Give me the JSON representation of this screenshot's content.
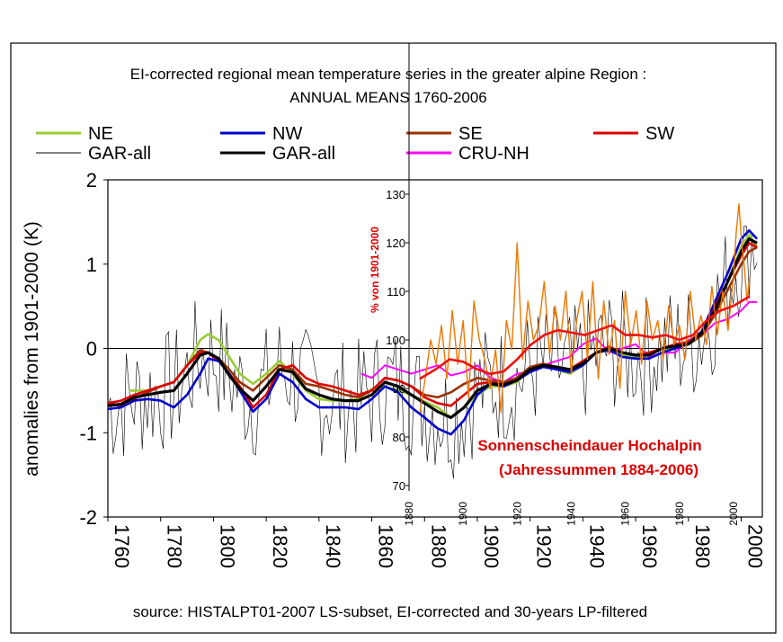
{
  "chart_data": [
    {
      "type": "line",
      "title": "EI-corrected regional mean temperature series in the greater alpine Region :",
      "subtitle": "ANNUAL MEANS 1760-2006",
      "xlabel": "",
      "ylabel": "anomalies from 1901-2000 (K)",
      "xlim": [
        1760,
        2008
      ],
      "ylim": [
        -2,
        2
      ],
      "x_ticks": [
        "1760",
        "1780",
        "1800",
        "1820",
        "1840",
        "1860",
        "1880",
        "1900",
        "1920",
        "1940",
        "1960",
        "1980",
        "2000"
      ],
      "y_ticks": [
        "-2",
        "-1",
        "0",
        "1",
        "2"
      ],
      "grid": false,
      "legend": "top, three rows above the plot",
      "legend_entries": [
        {
          "label": "NE",
          "color": "#99cc33"
        },
        {
          "label": "NW",
          "color": "#0000cc"
        },
        {
          "label": "SE",
          "color": "#993300"
        },
        {
          "label": "SW",
          "color": "#dd0000"
        },
        {
          "label": "GAR-all",
          "color": "#000000",
          "style": "thin"
        },
        {
          "label": "GAR-all",
          "color": "#000000",
          "style": "thick"
        },
        {
          "label": "CRU-NH",
          "color": "#ff00ff"
        }
      ],
      "series": [
        {
          "name": "NE",
          "color": "#99cc33",
          "x": [
            1768,
            1775,
            1780,
            1785,
            1790,
            1795,
            1798,
            1802,
            1806,
            1810,
            1815,
            1820,
            1825,
            1830,
            1835,
            1840,
            1845,
            1850,
            1855,
            1860,
            1865,
            1870,
            1875,
            1880,
            1885,
            1890,
            1895,
            1900,
            1905,
            1910,
            1915,
            1920,
            1925,
            1930,
            1935,
            1940,
            1945,
            1950,
            1955,
            1960,
            1965,
            1970,
            1975,
            1980,
            1985,
            1990,
            1995,
            2000,
            2003,
            2006
          ],
          "y": [
            -0.5,
            -0.5,
            -0.45,
            -0.4,
            -0.2,
            0.1,
            0.17,
            0.1,
            -0.1,
            -0.3,
            -0.42,
            -0.3,
            -0.15,
            -0.3,
            -0.5,
            -0.6,
            -0.62,
            -0.62,
            -0.6,
            -0.48,
            -0.45,
            -0.5,
            -0.55,
            -0.63,
            -0.7,
            -0.82,
            -0.7,
            -0.55,
            -0.45,
            -0.45,
            -0.4,
            -0.25,
            -0.2,
            -0.25,
            -0.3,
            -0.2,
            -0.05,
            -0.02,
            -0.08,
            -0.1,
            -0.12,
            -0.05,
            0.05,
            0.08,
            0.2,
            0.5,
            0.8,
            1.2,
            1.35,
            1.2
          ]
        },
        {
          "name": "NW",
          "color": "#0000cc",
          "x": [
            1760,
            1765,
            1770,
            1775,
            1780,
            1785,
            1790,
            1795,
            1798,
            1802,
            1806,
            1810,
            1815,
            1820,
            1825,
            1830,
            1835,
            1840,
            1845,
            1850,
            1855,
            1860,
            1865,
            1870,
            1875,
            1880,
            1885,
            1890,
            1895,
            1900,
            1905,
            1910,
            1915,
            1920,
            1925,
            1930,
            1935,
            1940,
            1945,
            1950,
            1955,
            1960,
            1965,
            1970,
            1975,
            1980,
            1985,
            1990,
            1995,
            2000,
            2003,
            2006
          ],
          "y": [
            -0.72,
            -0.7,
            -0.62,
            -0.6,
            -0.62,
            -0.7,
            -0.55,
            -0.3,
            -0.12,
            -0.15,
            -0.3,
            -0.5,
            -0.75,
            -0.6,
            -0.3,
            -0.4,
            -0.6,
            -0.7,
            -0.7,
            -0.7,
            -0.72,
            -0.6,
            -0.45,
            -0.52,
            -0.7,
            -0.82,
            -0.95,
            -1.02,
            -0.85,
            -0.55,
            -0.42,
            -0.45,
            -0.38,
            -0.28,
            -0.22,
            -0.25,
            -0.28,
            -0.2,
            -0.05,
            -0.02,
            -0.1,
            -0.12,
            -0.12,
            -0.05,
            0,
            0.05,
            0.2,
            0.55,
            0.9,
            1.3,
            1.4,
            1.3
          ]
        },
        {
          "name": "SE",
          "color": "#993300",
          "x": [
            1760,
            1765,
            1770,
            1775,
            1780,
            1785,
            1790,
            1795,
            1798,
            1802,
            1806,
            1810,
            1815,
            1820,
            1825,
            1830,
            1835,
            1840,
            1845,
            1850,
            1855,
            1860,
            1865,
            1870,
            1875,
            1880,
            1885,
            1890,
            1895,
            1900,
            1905,
            1910,
            1915,
            1920,
            1925,
            1930,
            1935,
            1940,
            1945,
            1950,
            1955,
            1960,
            1965,
            1970,
            1975,
            1980,
            1985,
            1990,
            1995,
            2000,
            2003,
            2006
          ],
          "y": [
            -0.65,
            -0.68,
            -0.6,
            -0.52,
            -0.45,
            -0.4,
            -0.2,
            -0.02,
            -0.05,
            -0.12,
            -0.25,
            -0.4,
            -0.5,
            -0.35,
            -0.2,
            -0.25,
            -0.42,
            -0.45,
            -0.5,
            -0.55,
            -0.58,
            -0.5,
            -0.35,
            -0.38,
            -0.45,
            -0.55,
            -0.58,
            -0.52,
            -0.42,
            -0.35,
            -0.38,
            -0.4,
            -0.35,
            -0.22,
            -0.18,
            -0.22,
            -0.25,
            -0.15,
            -0.05,
            0,
            -0.05,
            -0.08,
            -0.05,
            0,
            0.03,
            0.05,
            0.15,
            0.4,
            0.7,
            1.0,
            1.15,
            1.2
          ]
        },
        {
          "name": "SW",
          "color": "#dd0000",
          "x": [
            1760,
            1765,
            1770,
            1775,
            1780,
            1785,
            1790,
            1795,
            1798,
            1802,
            1806,
            1810,
            1815,
            1820,
            1825,
            1830,
            1835,
            1840,
            1845,
            1850,
            1855,
            1860,
            1865,
            1870,
            1875,
            1880,
            1885,
            1890,
            1895,
            1900,
            1905,
            1910,
            1915,
            1920,
            1925,
            1930,
            1935,
            1940,
            1945,
            1950,
            1955,
            1960,
            1965,
            1970,
            1975,
            1980,
            1985,
            1990,
            1995,
            2000,
            2003,
            2006
          ],
          "y": [
            -0.65,
            -0.62,
            -0.55,
            -0.5,
            -0.45,
            -0.4,
            -0.2,
            -0.05,
            -0.05,
            -0.15,
            -0.3,
            -0.45,
            -0.7,
            -0.55,
            -0.25,
            -0.2,
            -0.35,
            -0.42,
            -0.45,
            -0.5,
            -0.55,
            -0.5,
            -0.35,
            -0.38,
            -0.45,
            -0.58,
            -0.65,
            -0.68,
            -0.55,
            -0.42,
            -0.4,
            -0.43,
            -0.38,
            -0.25,
            -0.2,
            -0.22,
            -0.25,
            -0.15,
            -0.05,
            0.02,
            -0.05,
            -0.08,
            -0.05,
            0,
            0.05,
            0.08,
            0.2,
            0.5,
            0.8,
            1.1,
            1.25,
            1.2
          ]
        },
        {
          "name": "GAR-all",
          "color": "#000000",
          "style": "thick",
          "x": [
            1760,
            1765,
            1770,
            1775,
            1780,
            1785,
            1790,
            1795,
            1798,
            1802,
            1806,
            1810,
            1815,
            1820,
            1825,
            1830,
            1835,
            1840,
            1845,
            1850,
            1855,
            1860,
            1865,
            1870,
            1875,
            1880,
            1885,
            1890,
            1895,
            1900,
            1905,
            1910,
            1915,
            1920,
            1925,
            1930,
            1935,
            1940,
            1945,
            1950,
            1955,
            1960,
            1965,
            1970,
            1975,
            1980,
            1985,
            1990,
            1995,
            2000,
            2003,
            2006
          ],
          "y": [
            -0.68,
            -0.66,
            -0.58,
            -0.55,
            -0.52,
            -0.5,
            -0.3,
            -0.08,
            -0.05,
            -0.12,
            -0.32,
            -0.48,
            -0.62,
            -0.45,
            -0.25,
            -0.28,
            -0.48,
            -0.55,
            -0.6,
            -0.62,
            -0.62,
            -0.55,
            -0.4,
            -0.45,
            -0.55,
            -0.65,
            -0.75,
            -0.82,
            -0.7,
            -0.5,
            -0.42,
            -0.43,
            -0.38,
            -0.25,
            -0.2,
            -0.22,
            -0.25,
            -0.18,
            -0.05,
            0,
            -0.05,
            -0.08,
            -0.08,
            0,
            0.03,
            0.05,
            0.18,
            0.45,
            0.8,
            1.15,
            1.3,
            1.25
          ]
        },
        {
          "name": "CRU-NH",
          "color": "#ff00ff",
          "x": [
            1856,
            1860,
            1865,
            1870,
            1875,
            1880,
            1885,
            1890,
            1895,
            1900,
            1905,
            1910,
            1915,
            1920,
            1925,
            1930,
            1935,
            1940,
            1945,
            1950,
            1955,
            1960,
            1965,
            1970,
            1975,
            1980,
            1985,
            1990,
            1995,
            2000,
            2003,
            2006
          ],
          "y": [
            -0.3,
            -0.35,
            -0.2,
            -0.25,
            -0.3,
            -0.25,
            -0.2,
            -0.32,
            -0.28,
            -0.2,
            -0.35,
            -0.4,
            -0.3,
            -0.28,
            -0.2,
            -0.15,
            -0.1,
            0.05,
            0.12,
            -0.05,
            0,
            0.05,
            -0.1,
            -0.05,
            -0.05,
            0.1,
            0.15,
            0.3,
            0.35,
            0.45,
            0.55,
            0.55
          ]
        }
      ]
    },
    {
      "type": "line",
      "title": "Sonnenscheindauer Hochalpin",
      "subtitle": "(Jahressummen 1884-2006)",
      "ylabel": "% von 1901-2000",
      "xlim": [
        1880,
        2008
      ],
      "ylim": [
        70,
        130
      ],
      "x_ticks": [
        "1880",
        "1900",
        "1920",
        "1940",
        "1960",
        "1980",
        "2000"
      ],
      "y_ticks": [
        "70",
        "80",
        "90",
        "100",
        "110",
        "120",
        "130"
      ],
      "series": [
        {
          "name": "",
          "color": "#ee7700",
          "x": [
            1884,
            1886,
            1888,
            1890,
            1892,
            1894,
            1896,
            1898,
            1900,
            1902,
            1904,
            1906,
            1908,
            1910,
            1912,
            1914,
            1916,
            1918,
            1920,
            1922,
            1924,
            1926,
            1928,
            1930,
            1932,
            1934,
            1936,
            1938,
            1940,
            1942,
            1944,
            1946,
            1948,
            1950,
            1952,
            1954,
            1956,
            1958,
            1960,
            1962,
            1964,
            1966,
            1968,
            1970,
            1972,
            1974,
            1976,
            1978,
            1980,
            1982,
            1984,
            1986,
            1988,
            1990,
            1992,
            1994,
            1996,
            1998,
            2000,
            2001,
            2002,
            2003,
            2004,
            2005,
            2006
          ],
          "y": [
            85,
            92,
            100,
            95,
            103,
            92,
            106,
            95,
            104,
            88,
            108,
            100,
            96,
            90,
            98,
            85,
            104,
            98,
            120,
            96,
            108,
            100,
            103,
            112,
            97,
            107,
            100,
            110,
            93,
            104,
            110,
            96,
            112,
            92,
            108,
            97,
            104,
            90,
            110,
            99,
            106,
            95,
            108,
            100,
            104,
            96,
            107,
            99,
            103,
            96,
            110,
            100,
            105,
            99,
            111,
            101,
            110,
            102,
            113,
            122,
            128,
            120,
            115,
            108,
            113
          ]
        },
        {
          "name": "",
          "color": "#ee1111",
          "x": [
            1884,
            1890,
            1895,
            1900,
            1905,
            1910,
            1915,
            1920,
            1925,
            1930,
            1935,
            1940,
            1945,
            1950,
            1955,
            1960,
            1965,
            1970,
            1975,
            1980,
            1985,
            1990,
            1995,
            2000,
            2003,
            2006
          ],
          "y": [
            92,
            94,
            96,
            95.5,
            94,
            93,
            93.5,
            96,
            99,
            101,
            102,
            101.5,
            101,
            102,
            103,
            101,
            101,
            100.5,
            101,
            100,
            101,
            104,
            106,
            107,
            108,
            109
          ]
        }
      ]
    }
  ],
  "source_note": "source: HISTALPT01-2007 LS-subset, EI-corrected and 30-years LP-filtered"
}
